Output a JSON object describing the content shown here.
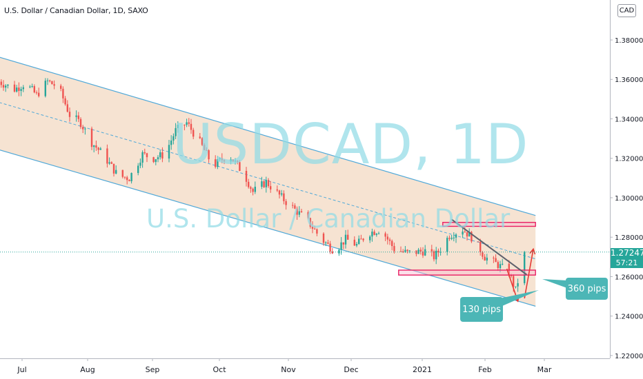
{
  "header": {
    "symbol_title": "U.S. Dollar / Canadian Dollar, 1D, SAXO",
    "currency_badge": "CAD"
  },
  "watermark": {
    "ticker": "USDCAD, 1D",
    "name": "U.S. Dollar / Canadian Dollar"
  },
  "price_label": {
    "price": "1.27247",
    "countdown": "57:21"
  },
  "annotations": {
    "drop_label": "130 pips",
    "rise_label": "360 pips"
  },
  "colors": {
    "up": "#26a69a",
    "down": "#ef5350",
    "channel_fill": "#f5deca",
    "channel_line": "#4fa8d8",
    "zone": "#e91e63",
    "arrow": "#e53935",
    "trendline": "#5d606b",
    "tag": "#4cb6b6"
  },
  "chart_data": {
    "type": "candlestick",
    "symbol": "USDCAD",
    "timeframe": "1D",
    "source": "SAXO",
    "currency": "CAD",
    "y_ticks": [
      "1.38000",
      "1.36000",
      "1.34000",
      "1.32000",
      "1.30000",
      "1.28000",
      "1.26000",
      "1.24000",
      "1.22000"
    ],
    "x_ticks": [
      "Jul",
      "Aug",
      "Sep",
      "Oct",
      "Nov",
      "Dec",
      "2021",
      "Feb",
      "Mar"
    ],
    "ylim": [
      1.2185,
      1.3875
    ],
    "last_price": 1.27247,
    "close_path": [
      {
        "day": -9,
        "close": 1.36
      },
      {
        "day": 0,
        "close": 1.355
      },
      {
        "day": 5,
        "close": 1.358
      },
      {
        "day": 10,
        "close": 1.352
      },
      {
        "day": 15,
        "close": 1.359
      },
      {
        "day": 20,
        "close": 1.356
      },
      {
        "day": 25,
        "close": 1.342
      },
      {
        "day": 30,
        "close": 1.338
      },
      {
        "day": 35,
        "close": 1.328
      },
      {
        "day": 40,
        "close": 1.322
      },
      {
        "day": 47,
        "close": 1.311
      },
      {
        "day": 52,
        "close": 1.31
      },
      {
        "day": 58,
        "close": 1.322
      },
      {
        "day": 63,
        "close": 1.32
      },
      {
        "day": 68,
        "close": 1.322
      },
      {
        "day": 73,
        "close": 1.334
      },
      {
        "day": 78,
        "close": 1.338
      },
      {
        "day": 84,
        "close": 1.328
      },
      {
        "day": 90,
        "close": 1.316
      },
      {
        "day": 97,
        "close": 1.322
      },
      {
        "day": 104,
        "close": 1.312
      },
      {
        "day": 108,
        "close": 1.303
      },
      {
        "day": 114,
        "close": 1.308
      },
      {
        "day": 122,
        "close": 1.299
      },
      {
        "day": 127,
        "close": 1.294
      },
      {
        "day": 133,
        "close": 1.288
      },
      {
        "day": 139,
        "close": 1.279
      },
      {
        "day": 145,
        "close": 1.273
      },
      {
        "day": 150,
        "close": 1.279
      },
      {
        "day": 155,
        "close": 1.276
      },
      {
        "day": 160,
        "close": 1.282
      },
      {
        "day": 166,
        "close": 1.284
      },
      {
        "day": 172,
        "close": 1.274
      },
      {
        "day": 178,
        "close": 1.272
      },
      {
        "day": 186,
        "close": 1.273
      },
      {
        "day": 190,
        "close": 1.27
      },
      {
        "day": 193,
        "close": 1.274
      },
      {
        "day": 197,
        "close": 1.281
      },
      {
        "day": 203,
        "close": 1.284
      },
      {
        "day": 208,
        "close": 1.279
      },
      {
        "day": 213,
        "close": 1.27
      },
      {
        "day": 219,
        "close": 1.266
      },
      {
        "day": 224,
        "close": 1.262
      },
      {
        "day": 227,
        "close": 1.253
      },
      {
        "day": 229,
        "close": 1.262
      },
      {
        "day": 231,
        "close": 1.2725
      }
    ],
    "channel": {
      "upper": [
        {
          "day": -9,
          "price": 1.372
        },
        {
          "day": 236,
          "price": 1.291
        }
      ],
      "mid": [
        {
          "day": -9,
          "price": 1.349
        },
        {
          "day": 236,
          "price": 1.269
        }
      ],
      "lower": [
        {
          "day": -9,
          "price": 1.325
        },
        {
          "day": 236,
          "price": 1.245
        }
      ]
    },
    "zones": [
      {
        "day_from": 194,
        "day_to": 236,
        "price_low": 1.2855,
        "price_high": 1.2875
      },
      {
        "day_from": 174,
        "day_to": 236,
        "price_low": 1.2608,
        "price_high": 1.2633
      }
    ],
    "trendline": [
      {
        "day": 198,
        "price": 1.289
      },
      {
        "day": 232,
        "price": 1.261
      }
    ],
    "arrows": [
      {
        "from": {
          "day": 223,
          "price": 1.264
        },
        "to": {
          "day": 228,
          "price": 1.2475
        }
      },
      {
        "from": {
          "day": 231,
          "price": 1.249
        },
        "to": {
          "day": 235,
          "price": 1.274
        }
      }
    ]
  }
}
